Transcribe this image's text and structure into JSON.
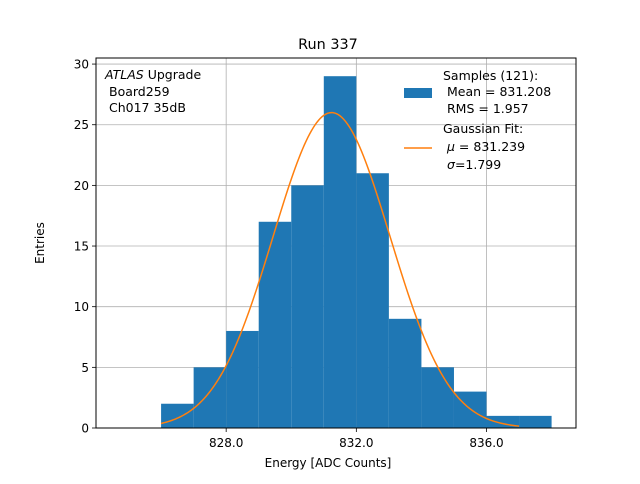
{
  "chart_data": {
    "type": "bar",
    "title": "Run 337",
    "xlabel": "Energy [ADC Counts]",
    "ylabel": "Entries",
    "xlim": [
      824.0,
      838.75
    ],
    "ylim": [
      0,
      30.5
    ],
    "grid": true,
    "x_ticks": [
      828.0,
      832.0,
      836.0
    ],
    "x_tick_labels": [
      "828.0",
      "832.0",
      "836.0"
    ],
    "y_ticks": [
      0,
      5,
      10,
      15,
      20,
      25,
      30
    ],
    "y_tick_labels": [
      "0",
      "5",
      "10",
      "15",
      "20",
      "25",
      "30"
    ],
    "bin_edges": [
      826,
      827,
      828,
      829,
      830,
      831,
      832,
      833,
      834,
      835,
      836,
      837,
      838
    ],
    "values": [
      2,
      5,
      8,
      17,
      20,
      29,
      21,
      9,
      5,
      3,
      1,
      1
    ],
    "histogram_color": "#1f77b4",
    "fit": {
      "mu": 831.239,
      "sigma": 1.799,
      "peak": 26.0,
      "x_range": [
        826.0,
        837.0
      ],
      "color": "#ff7f0e"
    },
    "annotation": {
      "atlas": "ATLAS",
      "upgrade": " Upgrade",
      "board": "Board259",
      "channel": "Ch017 35dB"
    },
    "legend": {
      "placement": "top-right",
      "samples_label": "Samples (121):",
      "mean_label": "Mean = 831.208",
      "rms_label": "RMS = 1.957",
      "fit_label": "Gaussian Fit:",
      "mu_symbol": "μ",
      "mu_value": " = 831.239",
      "sigma_symbol": "σ",
      "sigma_value": "=1.799"
    }
  }
}
